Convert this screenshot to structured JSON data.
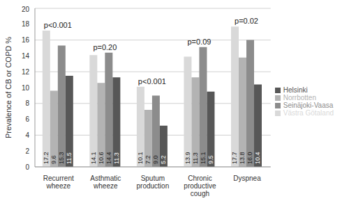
{
  "chart_data": {
    "type": "bar",
    "y_label": "Prevalence of CB or COPD %",
    "categories": [
      "Recurrent wheeze",
      "Asthmatic wheeze",
      "Sputum production",
      "Chronic productive cough",
      "Dyspnea"
    ],
    "annotations": [
      "p<0.001",
      "p=0.20",
      "p<0.001",
      "p=0.09",
      "p=0.02"
    ],
    "series": [
      {
        "name": "Västra Götaland",
        "color": "#d9d9d9",
        "values": [
          17.2,
          14.1,
          10.1,
          13.9,
          17.7
        ],
        "value_labels": [
          "17.2",
          "14.1",
          "10.1",
          "13.9",
          "17.7"
        ]
      },
      {
        "name": "Norrbotten",
        "color": "#b3b3b3",
        "values": [
          9.6,
          10.6,
          7.2,
          11.3,
          13.8
        ],
        "value_labels": [
          "9.6",
          "10.6",
          "7.2",
          "11.3",
          "13.8"
        ]
      },
      {
        "name": "Seinäjoki-Vaasa",
        "color": "#8c8c8c",
        "values": [
          15.3,
          14.4,
          9.0,
          15.1,
          16.0
        ],
        "value_labels": [
          "15.3",
          "14.4",
          "9.0",
          "15.1",
          "16.0"
        ]
      },
      {
        "name": "Helsinki",
        "color": "#575757",
        "values": [
          11.5,
          11.3,
          5.2,
          9.5,
          10.4
        ],
        "value_labels": [
          "11.5",
          "11.3",
          "5.2",
          "9.5",
          "10.4"
        ]
      }
    ],
    "ylim": [
      0,
      20
    ],
    "yticks": [
      0,
      2,
      4,
      6,
      8,
      10,
      12,
      14,
      16,
      18,
      20
    ],
    "grid": true,
    "legend": "right",
    "data_labels": true
  }
}
